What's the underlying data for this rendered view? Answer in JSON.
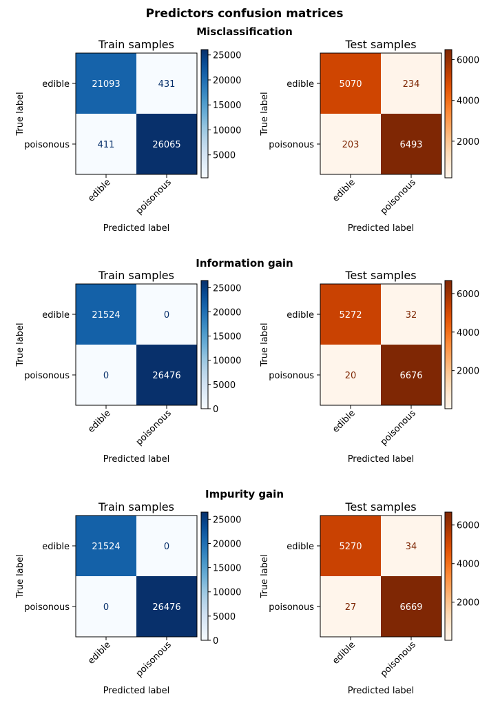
{
  "figure": {
    "suptitle": "Predictors confusion matrices"
  },
  "chart_data": [
    {
      "type": "heatmap",
      "group": "Misclassification",
      "title": "Train samples",
      "xlabel": "Predicted label",
      "ylabel": "True label",
      "x_categories": [
        "edible",
        "poisonous"
      ],
      "y_categories": [
        "edible",
        "poisonous"
      ],
      "values": [
        [
          21093,
          431
        ],
        [
          411,
          26065
        ]
      ],
      "colormap": "Blues",
      "colorbar_range": [
        411,
        26065
      ],
      "colorbar_ticks": [
        5000,
        10000,
        15000,
        20000,
        25000
      ]
    },
    {
      "type": "heatmap",
      "group": "Misclassification",
      "title": "Test samples",
      "xlabel": "Predicted label",
      "ylabel": "True label",
      "x_categories": [
        "edible",
        "poisonous"
      ],
      "y_categories": [
        "edible",
        "poisonous"
      ],
      "values": [
        [
          5070,
          234
        ],
        [
          203,
          6493
        ]
      ],
      "colormap": "Oranges",
      "colorbar_range": [
        203,
        6493
      ],
      "colorbar_ticks": [
        2000,
        4000,
        6000
      ]
    },
    {
      "type": "heatmap",
      "group": "Information gain",
      "title": "Train samples",
      "xlabel": "Predicted label",
      "ylabel": "True label",
      "x_categories": [
        "edible",
        "poisonous"
      ],
      "y_categories": [
        "edible",
        "poisonous"
      ],
      "values": [
        [
          21524,
          0
        ],
        [
          0,
          26476
        ]
      ],
      "colormap": "Blues",
      "colorbar_range": [
        0,
        26476
      ],
      "colorbar_ticks": [
        0,
        5000,
        10000,
        15000,
        20000,
        25000
      ]
    },
    {
      "type": "heatmap",
      "group": "Information gain",
      "title": "Test samples",
      "xlabel": "Predicted label",
      "ylabel": "True label",
      "x_categories": [
        "edible",
        "poisonous"
      ],
      "y_categories": [
        "edible",
        "poisonous"
      ],
      "values": [
        [
          5272,
          32
        ],
        [
          20,
          6676
        ]
      ],
      "colormap": "Oranges",
      "colorbar_range": [
        20,
        6676
      ],
      "colorbar_ticks": [
        2000,
        4000,
        6000
      ]
    },
    {
      "type": "heatmap",
      "group": "Impurity gain",
      "title": "Train samples",
      "xlabel": "Predicted label",
      "ylabel": "True label",
      "x_categories": [
        "edible",
        "poisonous"
      ],
      "y_categories": [
        "edible",
        "poisonous"
      ],
      "values": [
        [
          21524,
          0
        ],
        [
          0,
          26476
        ]
      ],
      "colormap": "Blues",
      "colorbar_range": [
        0,
        26476
      ],
      "colorbar_ticks": [
        0,
        5000,
        10000,
        15000,
        20000,
        25000
      ]
    },
    {
      "type": "heatmap",
      "group": "Impurity gain",
      "title": "Test samples",
      "xlabel": "Predicted label",
      "ylabel": "True label",
      "x_categories": [
        "edible",
        "poisonous"
      ],
      "y_categories": [
        "edible",
        "poisonous"
      ],
      "values": [
        [
          5270,
          34
        ],
        [
          27,
          6669
        ]
      ],
      "colormap": "Oranges",
      "colorbar_range": [
        27,
        6669
      ],
      "colorbar_ticks": [
        2000,
        4000,
        6000
      ]
    }
  ]
}
